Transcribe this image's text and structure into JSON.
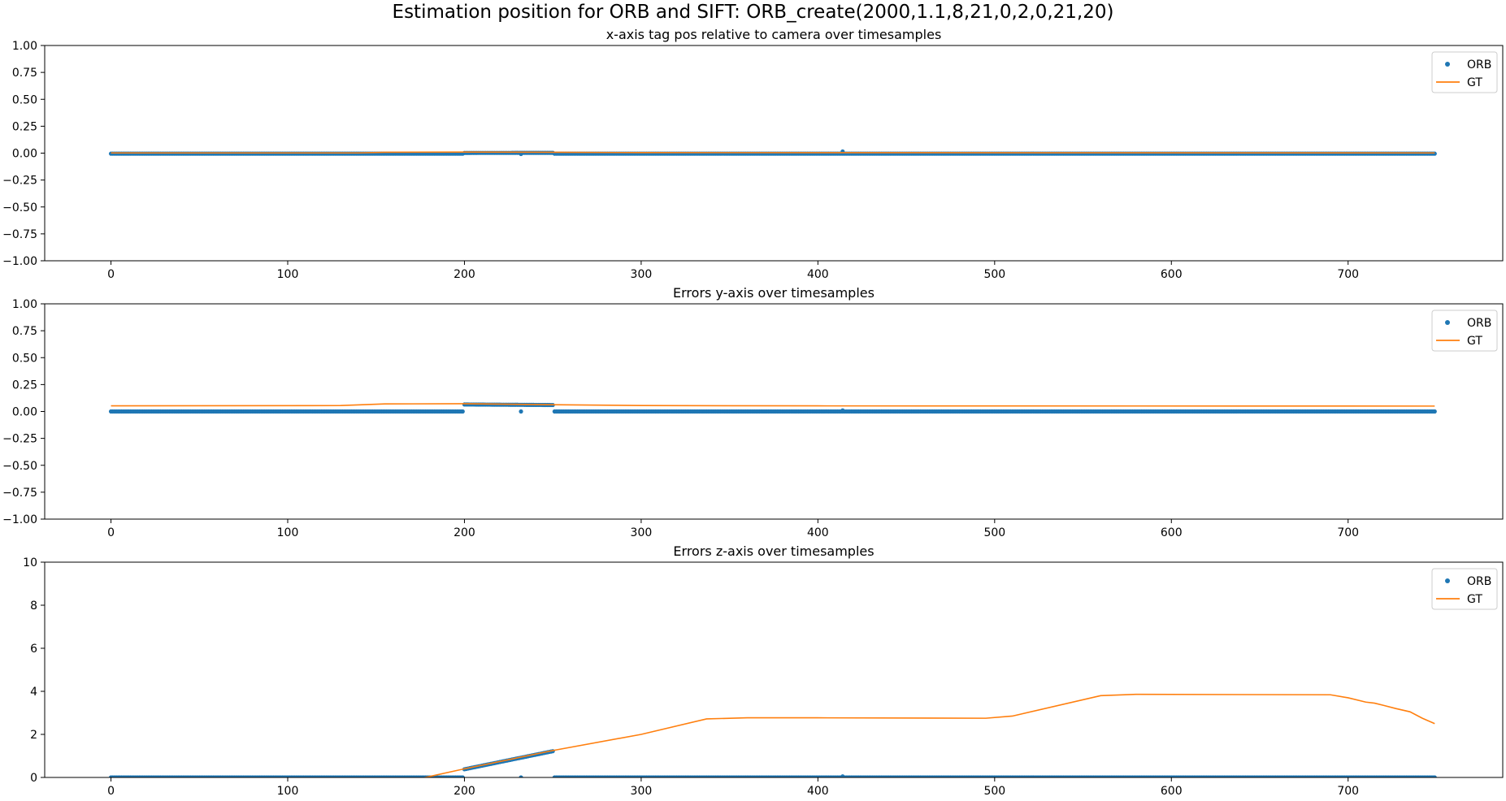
{
  "figure": {
    "suptitle": "Estimation position for ORB and SIFT: ORB_create(2000,1.1,8,21,0,2,0,21,20)"
  },
  "colors": {
    "orb": "#1f77b4",
    "gt": "#ff7f0e",
    "axes": "#000000",
    "legend_border": "#cccccc"
  },
  "chart_data": [
    {
      "type": "scatter+line",
      "title": "x-axis tag pos relative to camera over timesamples",
      "xlabel": "",
      "ylabel": "",
      "xlim": [
        -37.5,
        787.5
      ],
      "ylim": [
        -1.0,
        1.0
      ],
      "xticks": [
        0,
        100,
        200,
        300,
        400,
        500,
        600,
        700
      ],
      "xtick_labels": [
        "0",
        "100",
        "200",
        "300",
        "400",
        "500",
        "600",
        "700"
      ],
      "yticks": [
        -1.0,
        -0.75,
        -0.5,
        -0.25,
        0.0,
        0.25,
        0.5,
        0.75,
        1.0
      ],
      "ytick_labels": [
        "−1.00",
        "−0.75",
        "−0.50",
        "−0.25",
        "0.00",
        "0.25",
        "0.50",
        "0.75",
        "1.00"
      ],
      "legend": {
        "position": "upper right",
        "entries": [
          "ORB",
          "GT"
        ]
      },
      "series": [
        {
          "name": "ORB",
          "kind": "points",
          "segments": [
            {
              "x_range": [
                0,
                199
              ],
              "y_start": -0.005,
              "y_end": -0.005
            },
            {
              "x_range": [
                200,
                250
              ],
              "y_start": 0.002,
              "y_end": 0.003
            },
            {
              "x_range": [
                251,
                749
              ],
              "y_start": -0.005,
              "y_end": -0.005
            }
          ],
          "outliers": [
            [
              232,
              -0.008
            ],
            [
              414,
              0.015
            ]
          ]
        },
        {
          "name": "GT",
          "kind": "line",
          "points": [
            [
              0,
              0.002
            ],
            [
              140,
              0.002
            ],
            [
              155,
              0.008
            ],
            [
              200,
              0.01
            ],
            [
              250,
              0.008
            ],
            [
              300,
              0.005
            ],
            [
              749,
              0.002
            ]
          ]
        }
      ]
    },
    {
      "type": "scatter+line",
      "title": "Errors y-axis over timesamples",
      "xlabel": "",
      "ylabel": "",
      "xlim": [
        -37.5,
        787.5
      ],
      "ylim": [
        -1.0,
        1.0
      ],
      "xticks": [
        0,
        100,
        200,
        300,
        400,
        500,
        600,
        700
      ],
      "xtick_labels": [
        "0",
        "100",
        "200",
        "300",
        "400",
        "500",
        "600",
        "700"
      ],
      "yticks": [
        -1.0,
        -0.75,
        -0.5,
        -0.25,
        0.0,
        0.25,
        0.5,
        0.75,
        1.0
      ],
      "ytick_labels": [
        "−1.00",
        "−0.75",
        "−0.50",
        "−0.25",
        "0.00",
        "0.25",
        "0.50",
        "0.75",
        "1.00"
      ],
      "legend": {
        "position": "upper right",
        "entries": [
          "ORB",
          "GT"
        ]
      },
      "series": [
        {
          "name": "ORB",
          "kind": "points",
          "segments": [
            {
              "x_range": [
                0,
                199
              ],
              "y_start": 0.0,
              "y_end": 0.0
            },
            {
              "x_range": [
                200,
                250
              ],
              "y_start": 0.065,
              "y_end": 0.06
            },
            {
              "x_range": [
                251,
                749
              ],
              "y_start": 0.0,
              "y_end": 0.0
            }
          ],
          "outliers": [
            [
              232,
              0.0
            ],
            [
              414,
              0.01
            ]
          ]
        },
        {
          "name": "GT",
          "kind": "line",
          "points": [
            [
              0,
              0.052
            ],
            [
              130,
              0.055
            ],
            [
              155,
              0.07
            ],
            [
              200,
              0.072
            ],
            [
              250,
              0.063
            ],
            [
              300,
              0.055
            ],
            [
              400,
              0.052
            ],
            [
              749,
              0.05
            ]
          ]
        }
      ]
    },
    {
      "type": "scatter+line",
      "title": "Errors z-axis over timesamples",
      "xlabel": "",
      "ylabel": "",
      "xlim": [
        -37.5,
        787.5
      ],
      "ylim": [
        0,
        10
      ],
      "xticks": [
        0,
        100,
        200,
        300,
        400,
        500,
        600,
        700
      ],
      "xtick_labels": [
        "0",
        "100",
        "200",
        "300",
        "400",
        "500",
        "600",
        "700"
      ],
      "yticks": [
        0,
        2,
        4,
        6,
        8,
        10
      ],
      "ytick_labels": [
        "0",
        "2",
        "4",
        "6",
        "8",
        "10"
      ],
      "legend": {
        "position": "upper right",
        "entries": [
          "ORB",
          "GT"
        ]
      },
      "series": [
        {
          "name": "ORB",
          "kind": "points",
          "segments": [
            {
              "x_range": [
                0,
                199
              ],
              "y_start": 0.0,
              "y_end": 0.0
            },
            {
              "x_range": [
                200,
                250
              ],
              "y_start": 0.38,
              "y_end": 1.22
            },
            {
              "x_range": [
                251,
                749
              ],
              "y_start": 0.0,
              "y_end": 0.0
            }
          ],
          "outliers": [
            [
              232,
              0.0
            ],
            [
              414,
              0.05
            ]
          ]
        },
        {
          "name": "GT",
          "kind": "line",
          "points": [
            [
              175,
              -0.05
            ],
            [
              200,
              0.4
            ],
            [
              250,
              1.25
            ],
            [
              300,
              2.0
            ],
            [
              337,
              2.72
            ],
            [
              360,
              2.77
            ],
            [
              400,
              2.77
            ],
            [
              495,
              2.75
            ],
            [
              510,
              2.85
            ],
            [
              560,
              3.8
            ],
            [
              580,
              3.86
            ],
            [
              690,
              3.84
            ],
            [
              700,
              3.7
            ],
            [
              710,
              3.5
            ],
            [
              715,
              3.45
            ],
            [
              720,
              3.35
            ],
            [
              727,
              3.2
            ],
            [
              735,
              3.05
            ],
            [
              742,
              2.75
            ],
            [
              749,
              2.5
            ]
          ]
        }
      ]
    }
  ]
}
